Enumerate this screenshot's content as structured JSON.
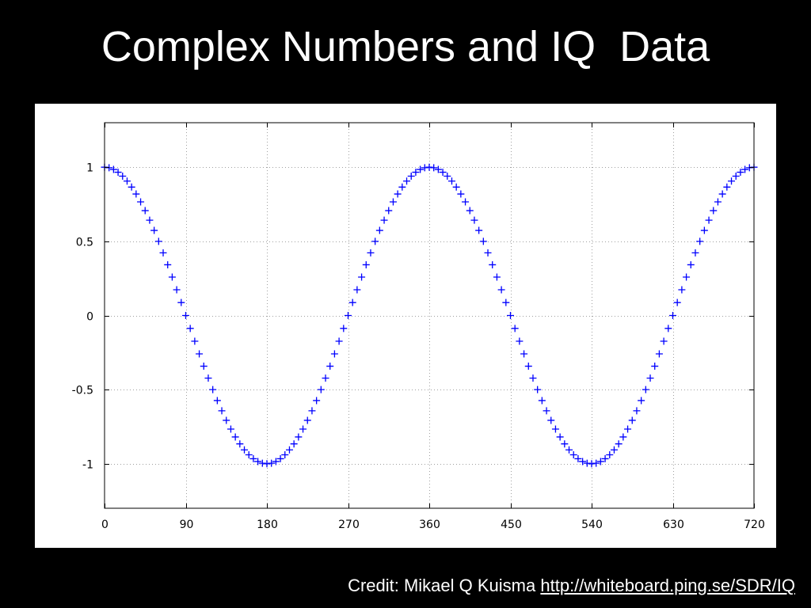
{
  "slide": {
    "title": "Complex Numbers and IQ  Data",
    "credit_prefix": "Credit: Mikael Q Kuisma",
    "credit_link": "http://whiteboard.ping.se/SDR/IQ"
  },
  "colors": {
    "background": "#000000",
    "panel": "#ffffff",
    "marker": "#0000ff",
    "grid": "#a0a0a0"
  },
  "chart_data": {
    "type": "scatter",
    "marker": "plus",
    "function": "cos(x degrees)",
    "x": [
      0,
      5,
      10,
      15,
      20,
      25,
      30,
      35,
      40,
      45,
      50,
      55,
      60,
      65,
      70,
      75,
      80,
      85,
      90,
      95,
      100,
      105,
      110,
      115,
      120,
      125,
      130,
      135,
      140,
      145,
      150,
      155,
      160,
      165,
      170,
      175,
      180,
      185,
      190,
      195,
      200,
      205,
      210,
      215,
      220,
      225,
      230,
      235,
      240,
      245,
      250,
      255,
      260,
      265,
      270,
      275,
      280,
      285,
      290,
      295,
      300,
      305,
      310,
      315,
      320,
      325,
      330,
      335,
      340,
      345,
      350,
      355,
      360,
      365,
      370,
      375,
      380,
      385,
      390,
      395,
      400,
      405,
      410,
      415,
      420,
      425,
      430,
      435,
      440,
      445,
      450,
      455,
      460,
      465,
      470,
      475,
      480,
      485,
      490,
      495,
      500,
      505,
      510,
      515,
      520,
      525,
      530,
      535,
      540,
      545,
      550,
      555,
      560,
      565,
      570,
      575,
      580,
      585,
      590,
      595,
      600,
      605,
      610,
      615,
      620,
      625,
      630,
      635,
      640,
      645,
      650,
      655,
      660,
      665,
      670,
      675,
      680,
      685,
      690,
      695,
      700,
      705,
      710,
      715,
      720
    ],
    "y": [
      1.0,
      0.9962,
      0.9848,
      0.9659,
      0.9397,
      0.9063,
      0.866,
      0.8192,
      0.766,
      0.7071,
      0.6428,
      0.5736,
      0.5,
      0.4226,
      0.342,
      0.2588,
      0.1736,
      0.0872,
      0.0,
      -0.0872,
      -0.1736,
      -0.2588,
      -0.342,
      -0.4226,
      -0.5,
      -0.5736,
      -0.6428,
      -0.7071,
      -0.766,
      -0.8192,
      -0.866,
      -0.9063,
      -0.9397,
      -0.9659,
      -0.9848,
      -0.9962,
      -1.0,
      -0.9962,
      -0.9848,
      -0.9659,
      -0.9397,
      -0.9063,
      -0.866,
      -0.8192,
      -0.766,
      -0.7071,
      -0.6428,
      -0.5736,
      -0.5,
      -0.4226,
      -0.342,
      -0.2588,
      -0.1736,
      -0.0872,
      0.0,
      0.0872,
      0.1736,
      0.2588,
      0.342,
      0.4226,
      0.5,
      0.5736,
      0.6428,
      0.7071,
      0.766,
      0.8192,
      0.866,
      0.9063,
      0.9397,
      0.9659,
      0.9848,
      0.9962,
      1.0,
      0.9962,
      0.9848,
      0.9659,
      0.9397,
      0.9063,
      0.866,
      0.8192,
      0.766,
      0.7071,
      0.6428,
      0.5736,
      0.5,
      0.4226,
      0.342,
      0.2588,
      0.1736,
      0.0872,
      0.0,
      -0.0872,
      -0.1736,
      -0.2588,
      -0.342,
      -0.4226,
      -0.5,
      -0.5736,
      -0.6428,
      -0.7071,
      -0.766,
      -0.8192,
      -0.866,
      -0.9063,
      -0.9397,
      -0.9659,
      -0.9848,
      -0.9962,
      -1.0,
      -0.9962,
      -0.9848,
      -0.9659,
      -0.9397,
      -0.9063,
      -0.866,
      -0.8192,
      -0.766,
      -0.7071,
      -0.6428,
      -0.5736,
      -0.5,
      -0.4226,
      -0.342,
      -0.2588,
      -0.1736,
      -0.0872,
      0.0,
      0.0872,
      0.1736,
      0.2588,
      0.342,
      0.4226,
      0.5,
      0.5736,
      0.6428,
      0.7071,
      0.766,
      0.8192,
      0.866,
      0.9063,
      0.9397,
      0.9659,
      0.9848,
      0.9962,
      1.0
    ],
    "xlim": [
      0,
      720
    ],
    "ylim": [
      -1.3,
      1.3
    ],
    "xticks": [
      0,
      90,
      180,
      270,
      360,
      450,
      540,
      630,
      720
    ],
    "xtick_labels": [
      "0",
      "90",
      "180",
      "270",
      "360",
      "450",
      "540",
      "630",
      "720"
    ],
    "yticks": [
      1,
      0.5,
      0,
      -0.5,
      -1
    ],
    "ytick_labels": [
      "1",
      "0.5",
      "0",
      "-0.5",
      "-1"
    ],
    "title": "",
    "xlabel": "",
    "ylabel": "",
    "grid": true,
    "legend": "none"
  }
}
